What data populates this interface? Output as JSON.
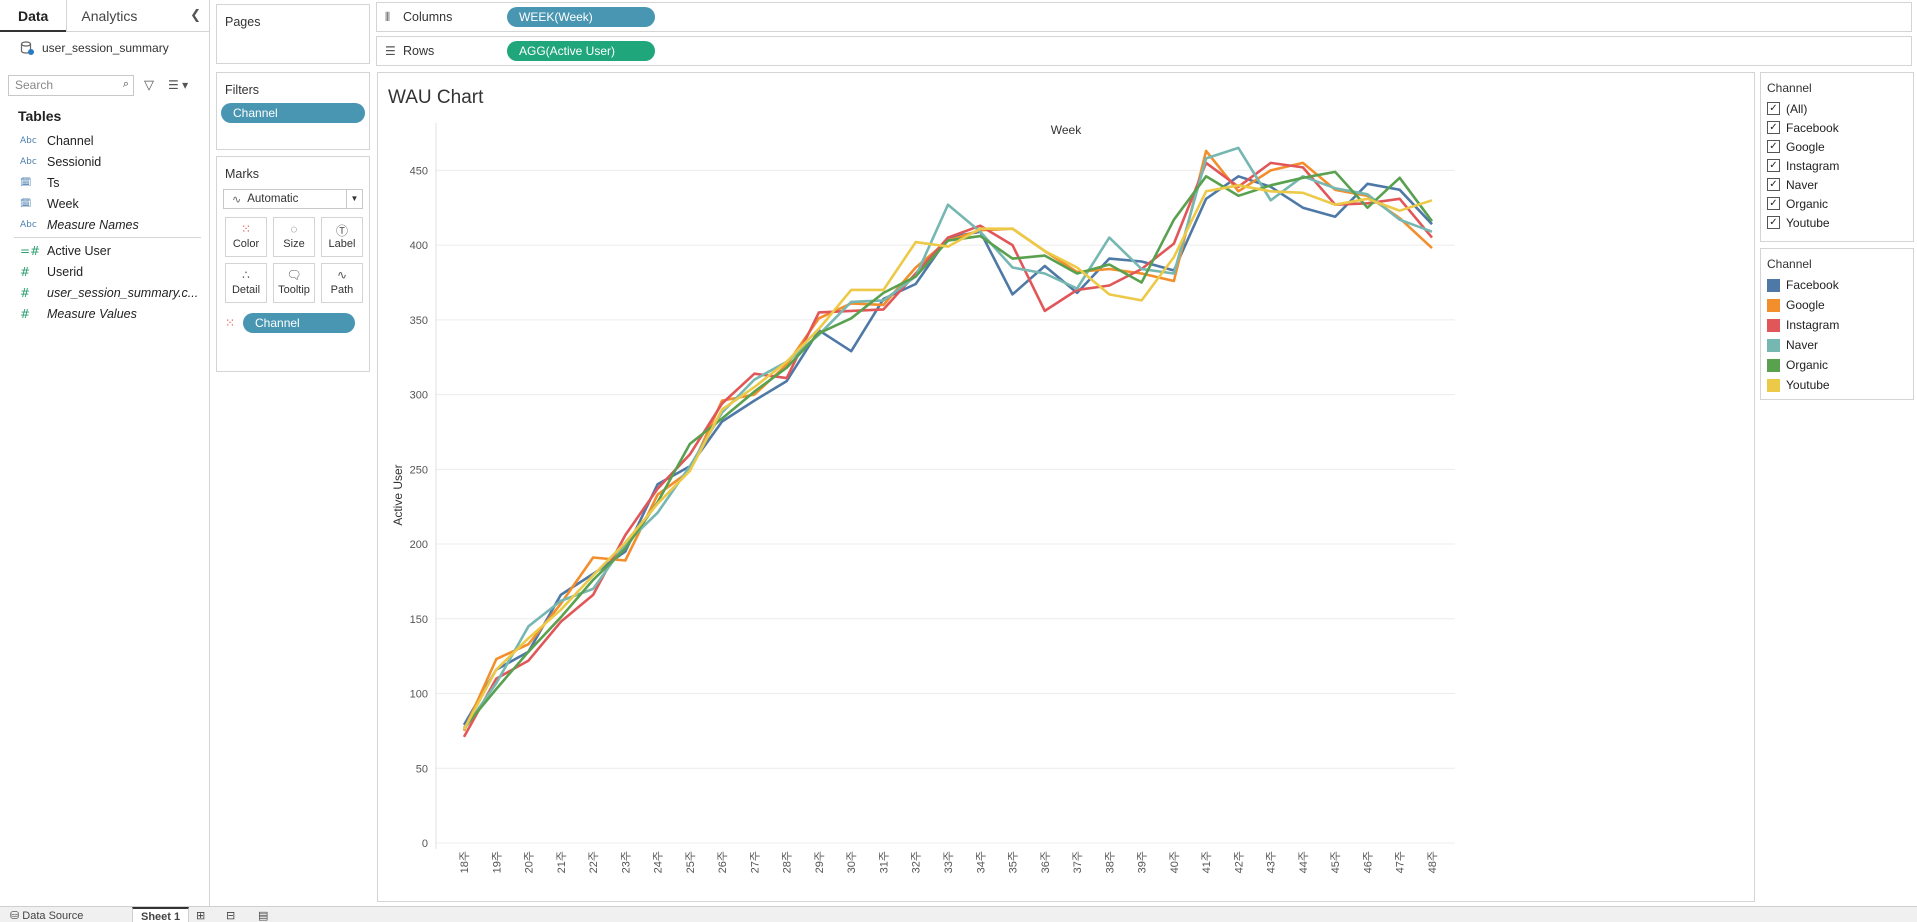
{
  "data_pane": {
    "tabs": [
      "Data",
      "Analytics"
    ],
    "collapse_icon": "chevron-left-icon",
    "datasource": "user_session_summary",
    "search_placeholder": "Search",
    "tables_header": "Tables",
    "dimensions": [
      {
        "icon": "Abc",
        "name": "Channel"
      },
      {
        "icon": "Abc",
        "name": "Sessionid"
      },
      {
        "icon": "calendar",
        "name": "Ts"
      },
      {
        "icon": "calendar",
        "name": "Week"
      },
      {
        "icon": "Abc",
        "name": "Measure Names"
      }
    ],
    "measures": [
      {
        "icon": "#",
        "name": "Active User"
      },
      {
        "icon": "#",
        "name": "Userid"
      },
      {
        "icon": "#",
        "name": "user_session_summary.c..."
      },
      {
        "icon": "#",
        "name": "Measure Values"
      }
    ]
  },
  "pages_card": {
    "title": "Pages"
  },
  "filters_card": {
    "title": "Filters",
    "pill": "Channel"
  },
  "marks_card": {
    "title": "Marks",
    "mark_type": "Automatic",
    "buttons": [
      "Color",
      "Size",
      "Label",
      "Detail",
      "Tooltip",
      "Path"
    ],
    "color_pill": "Channel"
  },
  "shelves": {
    "columns_label": "Columns",
    "columns_pill": "WEEK(Week)",
    "rows_label": "Rows",
    "rows_pill": "AGG(Active User)"
  },
  "view": {
    "title": "WAU Chart"
  },
  "filter_legend": {
    "title": "Channel",
    "items": [
      "(All)",
      "Facebook",
      "Google",
      "Instagram",
      "Naver",
      "Organic",
      "Youtube"
    ]
  },
  "color_legend": {
    "title": "Channel",
    "items": [
      {
        "name": "Facebook",
        "color": "#4e79a7"
      },
      {
        "name": "Google",
        "color": "#f28e2b"
      },
      {
        "name": "Instagram",
        "color": "#e15759"
      },
      {
        "name": "Naver",
        "color": "#76b7b2"
      },
      {
        "name": "Organic",
        "color": "#59a14f"
      },
      {
        "name": "Youtube",
        "color": "#edc948"
      }
    ]
  },
  "bottom_bar": {
    "data_source_tab": "Data Source",
    "sheet_tab": "Sheet 1"
  },
  "chart_data": {
    "type": "line",
    "title": "",
    "xlabel": "Week",
    "ylabel": "Active User",
    "ylim": [
      0,
      475
    ],
    "yticks": [
      0,
      50,
      100,
      150,
      200,
      250,
      300,
      350,
      400,
      450
    ],
    "grid": true,
    "categories": [
      "18주",
      "19주",
      "20주",
      "21주",
      "22주",
      "23주",
      "24주",
      "25주",
      "26주",
      "27주",
      "28주",
      "29주",
      "30주",
      "31주",
      "32주",
      "33주",
      "34주",
      "35주",
      "36주",
      "37주",
      "38주",
      "39주",
      "40주",
      "41주",
      "42주",
      "43주",
      "44주",
      "45주",
      "46주",
      "47주",
      "48주"
    ],
    "series": [
      {
        "name": "Facebook",
        "values": [
          79,
          116,
          128,
          166,
          180,
          195,
          240,
          252,
          282,
          296,
          309,
          343,
          329,
          364,
          374,
          405,
          409,
          367,
          386,
          368,
          391,
          389,
          383,
          431,
          446,
          439,
          425,
          419,
          441,
          437,
          414
        ]
      },
      {
        "name": "Google",
        "values": [
          75,
          123,
          133,
          160,
          191,
          189,
          233,
          249,
          296,
          300,
          320,
          351,
          361,
          360,
          385,
          403,
          410,
          411,
          396,
          382,
          384,
          381,
          376,
          463,
          436,
          450,
          455,
          437,
          433,
          418,
          398
        ]
      },
      {
        "name": "Instagram",
        "values": [
          71,
          110,
          122,
          148,
          166,
          206,
          237,
          260,
          294,
          314,
          311,
          355,
          356,
          357,
          381,
          405,
          413,
          400,
          356,
          370,
          373,
          384,
          401,
          455,
          439,
          455,
          452,
          427,
          428,
          431,
          405
        ]
      },
      {
        "name": "Naver",
        "values": [
          76,
          107,
          145,
          162,
          170,
          200,
          221,
          252,
          288,
          310,
          322,
          340,
          362,
          363,
          379,
          427,
          409,
          385,
          381,
          371,
          405,
          384,
          381,
          458,
          465,
          430,
          446,
          438,
          434,
          417,
          409
        ]
      },
      {
        "name": "Organic",
        "values": [
          77,
          103,
          128,
          151,
          176,
          197,
          228,
          267,
          284,
          302,
          318,
          341,
          351,
          368,
          379,
          403,
          406,
          391,
          393,
          381,
          387,
          375,
          417,
          446,
          433,
          440,
          445,
          449,
          425,
          445,
          416
        ]
      },
      {
        "name": "Youtube",
        "values": [
          76,
          116,
          137,
          156,
          179,
          201,
          227,
          249,
          290,
          305,
          322,
          344,
          370,
          370,
          402,
          399,
          411,
          411,
          396,
          385,
          367,
          363,
          392,
          436,
          440,
          436,
          435,
          427,
          431,
          423,
          430
        ]
      }
    ]
  }
}
